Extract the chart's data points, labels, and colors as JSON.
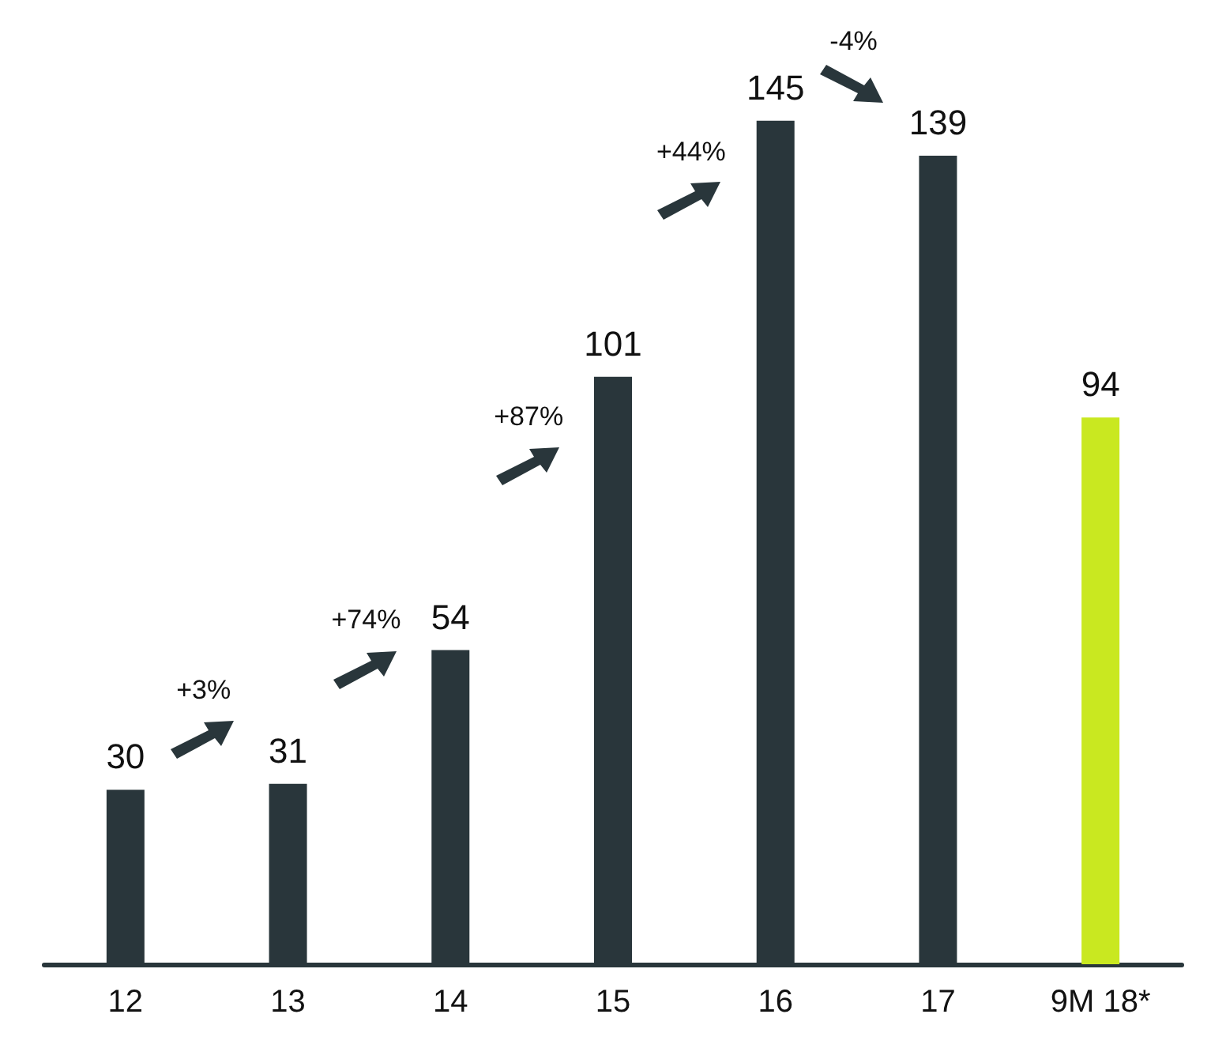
{
  "chart_data": {
    "type": "bar",
    "categories": [
      "12",
      "13",
      "14",
      "15",
      "16",
      "17",
      "9M 18*"
    ],
    "values": [
      30,
      31,
      54,
      101,
      145,
      139,
      94
    ],
    "colors": [
      "#29363b",
      "#29363b",
      "#29363b",
      "#29363b",
      "#29363b",
      "#29363b",
      "#c9e820"
    ],
    "data_labels": true,
    "grid": false,
    "annotations": [
      "+3%",
      "+74%",
      "+87%",
      "+44%",
      "-4%"
    ]
  }
}
